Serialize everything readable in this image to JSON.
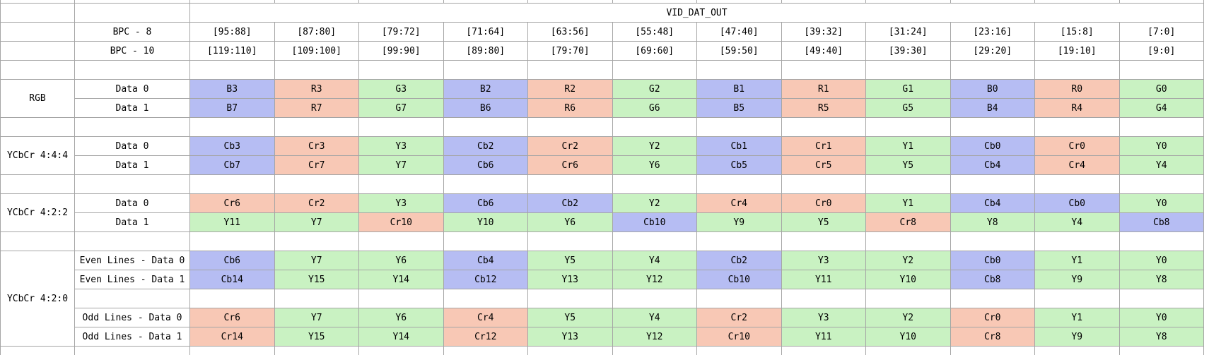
{
  "title": "VID_DAT_OUT",
  "colors": {
    "blue": "#b6bdf3",
    "red": "#f8c8b5",
    "green": "#c9f2c2",
    "grid": "#a5a5a5"
  },
  "bpc_rows": [
    {
      "label": "BPC - 8",
      "cells": [
        "[95:88]",
        "[87:80]",
        "[79:72]",
        "[71:64]",
        "[63:56]",
        "[55:48]",
        "[47:40]",
        "[39:32]",
        "[31:24]",
        "[23:16]",
        "[15:8]",
        "[7:0]"
      ]
    },
    {
      "label": "BPC - 10",
      "cells": [
        "[119:110]",
        "[109:100]",
        "[99:90]",
        "[89:80]",
        "[79:70]",
        "[69:60]",
        "[59:50]",
        "[49:40]",
        "[39:30]",
        "[29:20]",
        "[19:10]",
        "[9:0]"
      ]
    }
  ],
  "sections": [
    {
      "name": "RGB",
      "rows": [
        {
          "label": "Data 0",
          "cells": [
            "B3",
            "R3",
            "G3",
            "B2",
            "R2",
            "G2",
            "B1",
            "R1",
            "G1",
            "B0",
            "R0",
            "G0"
          ]
        },
        {
          "label": "Data 1",
          "cells": [
            "B7",
            "R7",
            "G7",
            "B6",
            "R6",
            "G6",
            "B5",
            "R5",
            "G5",
            "B4",
            "R4",
            "G4"
          ]
        }
      ]
    },
    {
      "name": "YCbCr 4:4:4",
      "rows": [
        {
          "label": "Data 0",
          "cells": [
            "Cb3",
            "Cr3",
            "Y3",
            "Cb2",
            "Cr2",
            "Y2",
            "Cb1",
            "Cr1",
            "Y1",
            "Cb0",
            "Cr0",
            "Y0"
          ]
        },
        {
          "label": "Data 1",
          "cells": [
            "Cb7",
            "Cr7",
            "Y7",
            "Cb6",
            "Cr6",
            "Y6",
            "Cb5",
            "Cr5",
            "Y5",
            "Cb4",
            "Cr4",
            "Y4"
          ]
        }
      ]
    },
    {
      "name": "YCbCr 4:2:2",
      "rows": [
        {
          "label": "Data 0",
          "cells": [
            "Cr6",
            "Cr2",
            "Y3",
            "Cb6",
            "Cb2",
            "Y2",
            "Cr4",
            "Cr0",
            "Y1",
            "Cb4",
            "Cb0",
            "Y0"
          ]
        },
        {
          "label": "Data 1",
          "cells": [
            "Y11",
            "Y7",
            "Cr10",
            "Y10",
            "Y6",
            "Cb10",
            "Y9",
            "Y5",
            "Cr8",
            "Y8",
            "Y4",
            "Cb8"
          ]
        }
      ]
    },
    {
      "name": "YCbCr 4:2:0",
      "rows": [
        {
          "label": "Even Lines - Data 0",
          "cells": [
            "Cb6",
            "Y7",
            "Y6",
            "Cb4",
            "Y5",
            "Y4",
            "Cb2",
            "Y3",
            "Y2",
            "Cb0",
            "Y1",
            "Y0"
          ]
        },
        {
          "label": "Even Lines - Data 1",
          "cells": [
            "Cb14",
            "Y15",
            "Y14",
            "Cb12",
            "Y13",
            "Y12",
            "Cb10",
            "Y11",
            "Y10",
            "Cb8",
            "Y9",
            "Y8"
          ]
        },
        {
          "label": "",
          "cells": null
        },
        {
          "label": "Odd Lines - Data 0",
          "cells": [
            "Cr6",
            "Y7",
            "Y6",
            "Cr4",
            "Y5",
            "Y4",
            "Cr2",
            "Y3",
            "Y2",
            "Cr0",
            "Y1",
            "Y0"
          ]
        },
        {
          "label": "Odd Lines - Data 1",
          "cells": [
            "Cr14",
            "Y15",
            "Y14",
            "Cr12",
            "Y13",
            "Y12",
            "Cr10",
            "Y11",
            "Y10",
            "Cr8",
            "Y9",
            "Y8"
          ]
        }
      ]
    }
  ]
}
